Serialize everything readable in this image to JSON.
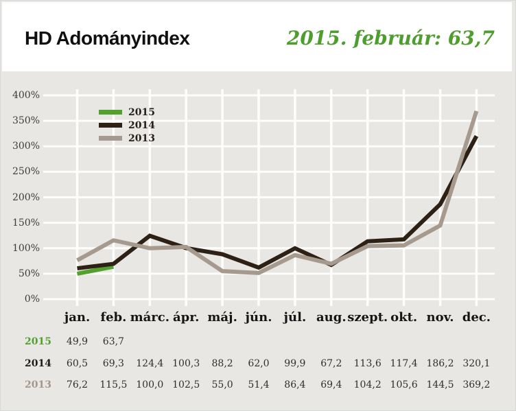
{
  "header": {
    "title": "HD Adományindex",
    "subtitle": "2015. február: 63,7"
  },
  "colors": {
    "page_background": "#e9e7e4",
    "header_background": "#ffffff",
    "gridline": "#fdfdfc",
    "accent_green": "#52a02e",
    "dark_brown": "#2d2015",
    "taupe": "#a69a8e",
    "axis_text": "#3c3c3c"
  },
  "chart_data": {
    "type": "line",
    "title": "HD Adományindex",
    "xlabel": "",
    "ylabel": "",
    "categories": [
      "jan.",
      "feb.",
      "márc.",
      "ápr.",
      "máj.",
      "jún.",
      "júl.",
      "aug.",
      "szept.",
      "okt.",
      "nov.",
      "dec."
    ],
    "y_ticks": [
      "0%",
      "50%",
      "100%",
      "150%",
      "200%",
      "250%",
      "300%",
      "350%",
      "400%"
    ],
    "ylim": [
      0,
      400
    ],
    "grid": true,
    "legend_position": "top-left",
    "series": [
      {
        "name": "2015",
        "color": "#52a02e",
        "values": [
          49.9,
          63.7
        ]
      },
      {
        "name": "2014",
        "color": "#2d2015",
        "values": [
          60.5,
          69.3,
          124.4,
          100.3,
          88.2,
          62.0,
          99.9,
          67.2,
          113.6,
          117.4,
          186.2,
          320.1
        ]
      },
      {
        "name": "2013",
        "color": "#a69a8e",
        "values": [
          76.2,
          115.5,
          100.0,
          102.5,
          55.0,
          51.4,
          86.4,
          69.4,
          104.2,
          105.6,
          144.5,
          369.2
        ]
      }
    ]
  },
  "table": {
    "rows": [
      {
        "label": "2015",
        "label_color": "#52a02e",
        "values": [
          "49,9",
          "63,7"
        ]
      },
      {
        "label": "2014",
        "label_color": "#1f1b17",
        "values": [
          "60,5",
          "69,3",
          "124,4",
          "100,3",
          "88,2",
          "62,0",
          "99,9",
          "67,2",
          "113,6",
          "117,4",
          "186,2",
          "320,1"
        ]
      },
      {
        "label": "2013",
        "label_color": "#a3968b",
        "values": [
          "76,2",
          "115,5",
          "100,0",
          "102,5",
          "55,0",
          "51,4",
          "86,4",
          "69,4",
          "104,2",
          "105,6",
          "144,5",
          "369,2"
        ]
      }
    ]
  }
}
